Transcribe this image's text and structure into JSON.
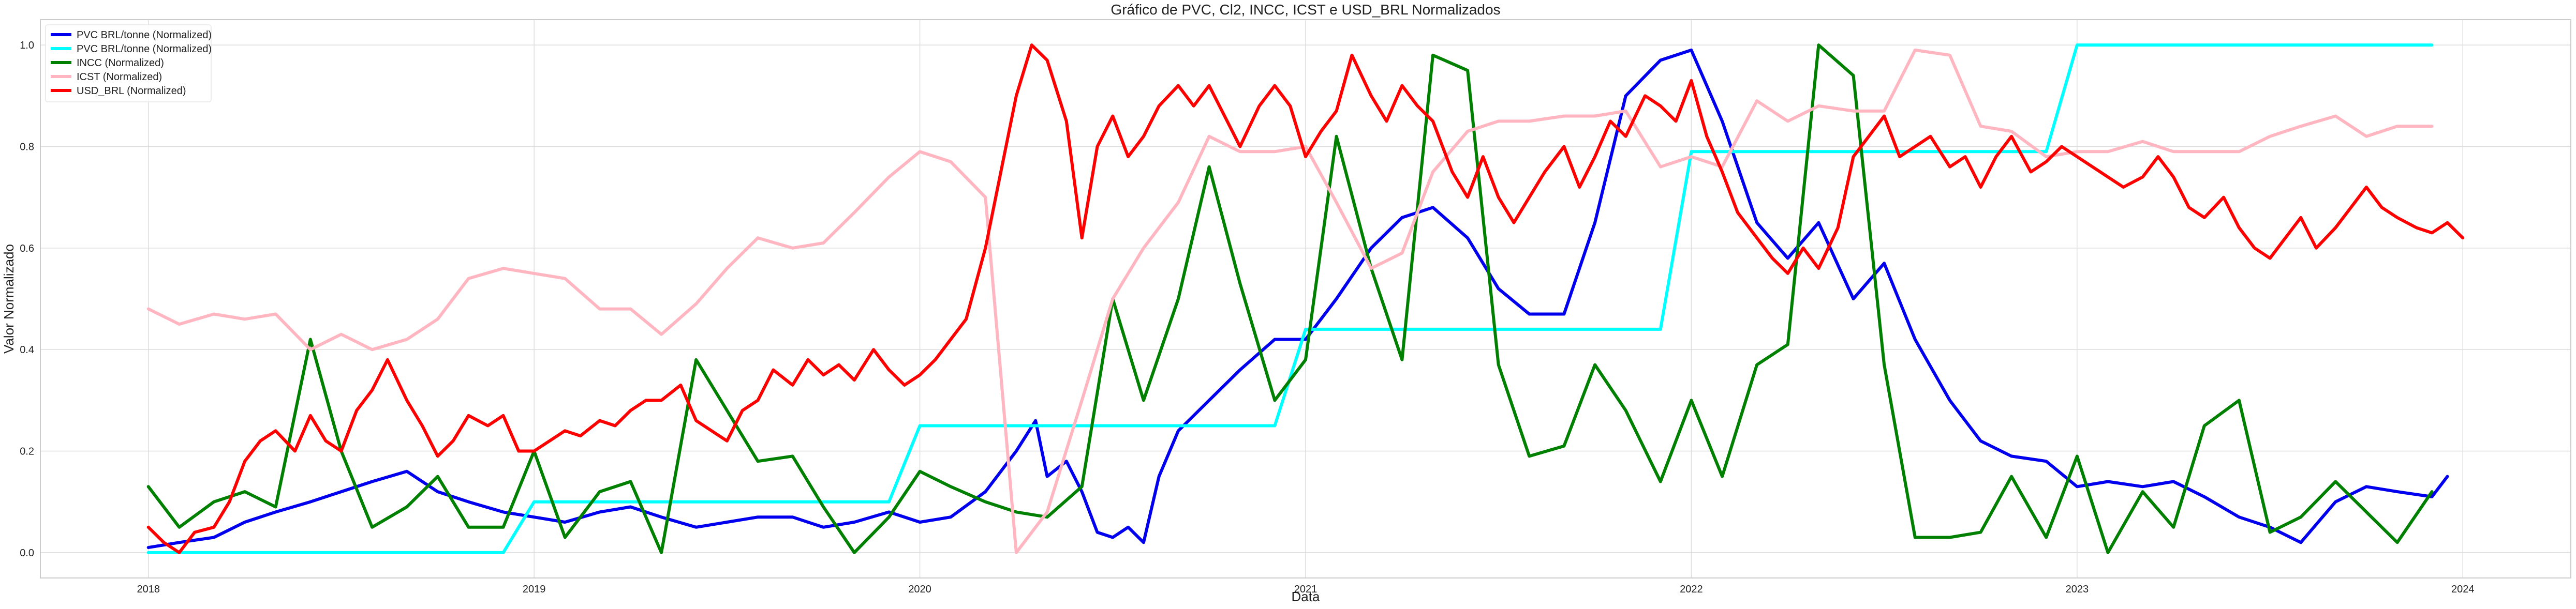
{
  "chart_data": {
    "type": "line",
    "title": "Gráfico de PVC, Cl2, INCC, ICST e USD_BRL Normalizados",
    "xlabel": "Data",
    "ylabel": "Valor Normalizado",
    "xlim": [
      2017.72,
      2024.28
    ],
    "ylim": [
      -0.05,
      1.05
    ],
    "x_ticks": [
      2018,
      2019,
      2020,
      2021,
      2022,
      2023,
      2024
    ],
    "x_tick_labels": [
      "2018",
      "2019",
      "2020",
      "2021",
      "2022",
      "2023",
      "2024"
    ],
    "y_ticks": [
      0.0,
      0.2,
      0.4,
      0.6,
      0.8,
      1.0
    ],
    "y_tick_labels": [
      "0.0",
      "0.2",
      "0.4",
      "0.6",
      "0.8",
      "1.0"
    ],
    "grid": true,
    "legend_position": "top-left",
    "series": [
      {
        "name": "PVC BRL/tonne (Normalized)",
        "color": "#0000ee",
        "x": [
          2018.0,
          2018.08,
          2018.17,
          2018.25,
          2018.33,
          2018.42,
          2018.5,
          2018.58,
          2018.67,
          2018.75,
          2018.83,
          2018.92,
          2019.0,
          2019.08,
          2019.17,
          2019.25,
          2019.33,
          2019.42,
          2019.5,
          2019.58,
          2019.67,
          2019.75,
          2019.83,
          2019.92,
          2020.0,
          2020.08,
          2020.17,
          2020.25,
          2020.3,
          2020.33,
          2020.38,
          2020.42,
          2020.46,
          2020.5,
          2020.54,
          2020.58,
          2020.62,
          2020.67,
          2020.75,
          2020.83,
          2020.92,
          2021.0,
          2021.08,
          2021.17,
          2021.25,
          2021.33,
          2021.42,
          2021.5,
          2021.58,
          2021.67,
          2021.75,
          2021.83,
          2021.92,
          2022.0,
          2022.08,
          2022.17,
          2022.25,
          2022.33,
          2022.42,
          2022.5,
          2022.58,
          2022.67,
          2022.75,
          2022.83,
          2022.92,
          2023.0,
          2023.08,
          2023.17,
          2023.25,
          2023.33,
          2023.42,
          2023.5,
          2023.58,
          2023.67,
          2023.75,
          2023.83,
          2023.92,
          2023.96
        ],
        "values": [
          0.01,
          0.02,
          0.03,
          0.06,
          0.08,
          0.1,
          0.12,
          0.14,
          0.16,
          0.12,
          0.1,
          0.08,
          0.07,
          0.06,
          0.08,
          0.09,
          0.07,
          0.05,
          0.06,
          0.07,
          0.07,
          0.05,
          0.06,
          0.08,
          0.06,
          0.07,
          0.12,
          0.2,
          0.26,
          0.15,
          0.18,
          0.12,
          0.04,
          0.03,
          0.05,
          0.02,
          0.15,
          0.24,
          0.3,
          0.36,
          0.42,
          0.42,
          0.5,
          0.6,
          0.66,
          0.68,
          0.62,
          0.52,
          0.47,
          0.47,
          0.65,
          0.9,
          0.97,
          0.99,
          0.85,
          0.65,
          0.58,
          0.65,
          0.5,
          0.57,
          0.42,
          0.3,
          0.22,
          0.19,
          0.18,
          0.13,
          0.14,
          0.13,
          0.14,
          0.11,
          0.07,
          0.05,
          0.02,
          0.1,
          0.13,
          0.12,
          0.11,
          0.15
        ]
      },
      {
        "name": "PVC BRL/tonne (Normalized)",
        "color": "#00ffff",
        "x": [
          2018.0,
          2018.92,
          2019.0,
          2019.92,
          2020.0,
          2020.92,
          2021.0,
          2021.92,
          2022.0,
          2022.92,
          2023.0,
          2023.92
        ],
        "values": [
          0.0,
          0.0,
          0.1,
          0.1,
          0.25,
          0.25,
          0.44,
          0.44,
          0.79,
          0.79,
          1.0,
          1.0
        ]
      },
      {
        "name": "INCC (Normalized)",
        "color": "#008000",
        "x": [
          2018.0,
          2018.08,
          2018.17,
          2018.25,
          2018.33,
          2018.42,
          2018.5,
          2018.58,
          2018.67,
          2018.75,
          2018.83,
          2018.92,
          2019.0,
          2019.08,
          2019.17,
          2019.25,
          2019.33,
          2019.42,
          2019.5,
          2019.58,
          2019.67,
          2019.75,
          2019.83,
          2019.92,
          2020.0,
          2020.08,
          2020.17,
          2020.25,
          2020.33,
          2020.42,
          2020.5,
          2020.58,
          2020.67,
          2020.75,
          2020.83,
          2020.92,
          2021.0,
          2021.08,
          2021.17,
          2021.25,
          2021.33,
          2021.42,
          2021.5,
          2021.58,
          2021.67,
          2021.75,
          2021.83,
          2021.92,
          2022.0,
          2022.08,
          2022.17,
          2022.25,
          2022.33,
          2022.42,
          2022.5,
          2022.58,
          2022.67,
          2022.75,
          2022.83,
          2022.92,
          2023.0,
          2023.08,
          2023.17,
          2023.25,
          2023.33,
          2023.42,
          2023.5,
          2023.58,
          2023.67,
          2023.75,
          2023.83,
          2023.92
        ],
        "values": [
          0.13,
          0.05,
          0.1,
          0.12,
          0.09,
          0.42,
          0.2,
          0.05,
          0.09,
          0.15,
          0.05,
          0.05,
          0.2,
          0.03,
          0.12,
          0.14,
          0.0,
          0.38,
          0.28,
          0.18,
          0.19,
          0.09,
          0.0,
          0.07,
          0.16,
          0.13,
          0.1,
          0.08,
          0.07,
          0.13,
          0.5,
          0.3,
          0.5,
          0.76,
          0.53,
          0.3,
          0.38,
          0.82,
          0.56,
          0.38,
          0.98,
          0.95,
          0.37,
          0.19,
          0.21,
          0.37,
          0.28,
          0.14,
          0.3,
          0.15,
          0.37,
          0.41,
          1.0,
          0.94,
          0.37,
          0.03,
          0.03,
          0.04,
          0.15,
          0.03,
          0.19,
          0.0,
          0.12,
          0.05,
          0.25,
          0.3,
          0.04,
          0.07,
          0.14,
          0.08,
          0.02,
          0.12
        ]
      },
      {
        "name": "ICST (Normalized)",
        "color": "#ffb6c1",
        "x": [
          2018.0,
          2018.08,
          2018.17,
          2018.25,
          2018.33,
          2018.42,
          2018.5,
          2018.58,
          2018.67,
          2018.75,
          2018.83,
          2018.92,
          2019.0,
          2019.08,
          2019.17,
          2019.25,
          2019.33,
          2019.42,
          2019.5,
          2019.58,
          2019.67,
          2019.75,
          2019.83,
          2019.92,
          2020.0,
          2020.08,
          2020.17,
          2020.25,
          2020.33,
          2020.42,
          2020.5,
          2020.58,
          2020.67,
          2020.75,
          2020.83,
          2020.92,
          2021.0,
          2021.08,
          2021.17,
          2021.25,
          2021.33,
          2021.42,
          2021.5,
          2021.58,
          2021.67,
          2021.75,
          2021.83,
          2021.92,
          2022.0,
          2022.08,
          2022.17,
          2022.25,
          2022.33,
          2022.42,
          2022.5,
          2022.58,
          2022.67,
          2022.75,
          2022.83,
          2022.92,
          2023.0,
          2023.08,
          2023.17,
          2023.25,
          2023.33,
          2023.42,
          2023.5,
          2023.58,
          2023.67,
          2023.75,
          2023.83,
          2023.92
        ],
        "values": [
          0.48,
          0.45,
          0.47,
          0.46,
          0.47,
          0.4,
          0.43,
          0.4,
          0.42,
          0.46,
          0.54,
          0.56,
          0.55,
          0.54,
          0.48,
          0.48,
          0.43,
          0.49,
          0.56,
          0.62,
          0.6,
          0.61,
          0.67,
          0.74,
          0.79,
          0.77,
          0.7,
          0.0,
          0.08,
          0.3,
          0.5,
          0.6,
          0.69,
          0.82,
          0.79,
          0.79,
          0.8,
          0.69,
          0.56,
          0.59,
          0.75,
          0.83,
          0.85,
          0.85,
          0.86,
          0.86,
          0.87,
          0.76,
          0.78,
          0.76,
          0.89,
          0.85,
          0.88,
          0.87,
          0.87,
          0.99,
          0.98,
          0.84,
          0.83,
          0.78,
          0.79,
          0.79,
          0.81,
          0.79,
          0.79,
          0.79,
          0.82,
          0.84,
          0.86,
          0.82,
          0.84,
          0.84
        ]
      },
      {
        "name": "USD_BRL (Normalized)",
        "color": "#ff0000",
        "x": [
          2018.0,
          2018.04,
          2018.08,
          2018.12,
          2018.17,
          2018.21,
          2018.25,
          2018.29,
          2018.33,
          2018.38,
          2018.42,
          2018.46,
          2018.5,
          2018.54,
          2018.58,
          2018.62,
          2018.67,
          2018.71,
          2018.75,
          2018.79,
          2018.83,
          2018.88,
          2018.92,
          2018.96,
          2019.0,
          2019.04,
          2019.08,
          2019.12,
          2019.17,
          2019.21,
          2019.25,
          2019.29,
          2019.33,
          2019.38,
          2019.42,
          2019.46,
          2019.5,
          2019.54,
          2019.58,
          2019.62,
          2019.67,
          2019.71,
          2019.75,
          2019.79,
          2019.83,
          2019.88,
          2019.92,
          2019.96,
          2020.0,
          2020.04,
          2020.08,
          2020.12,
          2020.17,
          2020.21,
          2020.25,
          2020.29,
          2020.33,
          2020.38,
          2020.42,
          2020.46,
          2020.5,
          2020.54,
          2020.58,
          2020.62,
          2020.67,
          2020.71,
          2020.75,
          2020.79,
          2020.83,
          2020.88,
          2020.92,
          2020.96,
          2021.0,
          2021.04,
          2021.08,
          2021.12,
          2021.17,
          2021.21,
          2021.25,
          2021.29,
          2021.33,
          2021.38,
          2021.42,
          2021.46,
          2021.5,
          2021.54,
          2021.58,
          2021.62,
          2021.67,
          2021.71,
          2021.75,
          2021.79,
          2021.83,
          2021.88,
          2021.92,
          2021.96,
          2022.0,
          2022.04,
          2022.08,
          2022.12,
          2022.17,
          2022.21,
          2022.25,
          2022.29,
          2022.33,
          2022.38,
          2022.42,
          2022.46,
          2022.5,
          2022.54,
          2022.58,
          2022.62,
          2022.67,
          2022.71,
          2022.75,
          2022.79,
          2022.83,
          2022.88,
          2022.92,
          2022.96,
          2023.0,
          2023.04,
          2023.08,
          2023.12,
          2023.17,
          2023.21,
          2023.25,
          2023.29,
          2023.33,
          2023.38,
          2023.42,
          2023.46,
          2023.5,
          2023.54,
          2023.58,
          2023.62,
          2023.67,
          2023.71,
          2023.75,
          2023.79,
          2023.83,
          2023.88,
          2023.92,
          2023.96,
          2024.0
        ],
        "values": [
          0.05,
          0.02,
          0.0,
          0.04,
          0.05,
          0.1,
          0.18,
          0.22,
          0.24,
          0.2,
          0.27,
          0.22,
          0.2,
          0.28,
          0.32,
          0.38,
          0.3,
          0.25,
          0.19,
          0.22,
          0.27,
          0.25,
          0.27,
          0.2,
          0.2,
          0.22,
          0.24,
          0.23,
          0.26,
          0.25,
          0.28,
          0.3,
          0.3,
          0.33,
          0.26,
          0.24,
          0.22,
          0.28,
          0.3,
          0.36,
          0.33,
          0.38,
          0.35,
          0.37,
          0.34,
          0.4,
          0.36,
          0.33,
          0.35,
          0.38,
          0.42,
          0.46,
          0.6,
          0.75,
          0.9,
          1.0,
          0.97,
          0.85,
          0.62,
          0.8,
          0.86,
          0.78,
          0.82,
          0.88,
          0.92,
          0.88,
          0.92,
          0.86,
          0.8,
          0.88,
          0.92,
          0.88,
          0.78,
          0.83,
          0.87,
          0.98,
          0.9,
          0.85,
          0.92,
          0.88,
          0.85,
          0.75,
          0.7,
          0.78,
          0.7,
          0.65,
          0.7,
          0.75,
          0.8,
          0.72,
          0.78,
          0.85,
          0.82,
          0.9,
          0.88,
          0.85,
          0.93,
          0.82,
          0.75,
          0.67,
          0.62,
          0.58,
          0.55,
          0.6,
          0.56,
          0.64,
          0.78,
          0.82,
          0.86,
          0.78,
          0.8,
          0.82,
          0.76,
          0.78,
          0.72,
          0.78,
          0.82,
          0.75,
          0.77,
          0.8,
          0.78,
          0.76,
          0.74,
          0.72,
          0.74,
          0.78,
          0.74,
          0.68,
          0.66,
          0.7,
          0.64,
          0.6,
          0.58,
          0.62,
          0.66,
          0.6,
          0.64,
          0.68,
          0.72,
          0.68,
          0.66,
          0.64,
          0.63,
          0.65,
          0.62
        ]
      }
    ]
  }
}
